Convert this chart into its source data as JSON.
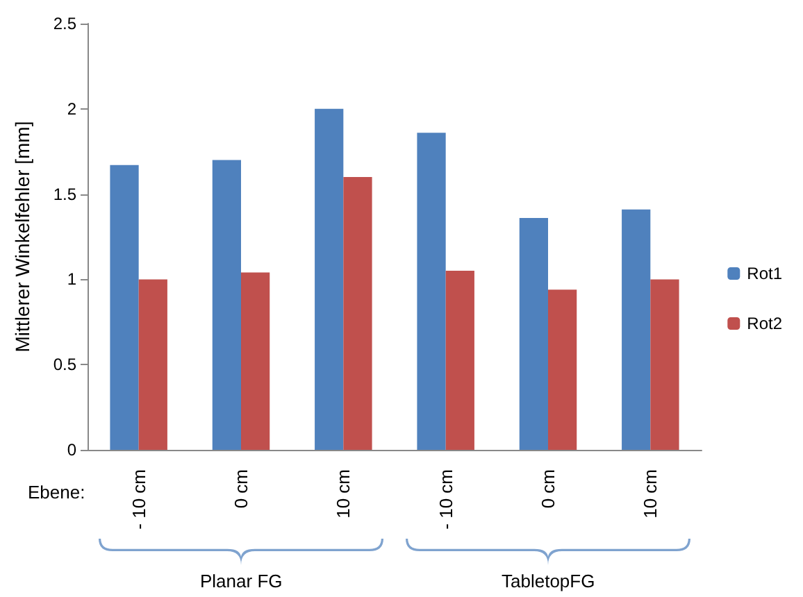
{
  "chart_data": {
    "type": "bar",
    "ylabel": "Mittlerer Winkelfehler [mm]",
    "categories": [
      "- 10 cm",
      "0 cm",
      "10 cm",
      "- 10 cm",
      "0 cm",
      "10 cm"
    ],
    "series": [
      {
        "name": "Rot1",
        "color": "#4f81bd",
        "values": [
          1.67,
          1.7,
          2.0,
          1.86,
          1.36,
          1.41
        ]
      },
      {
        "name": "Rot2",
        "color": "#c0504d",
        "values": [
          1.0,
          1.04,
          1.6,
          1.05,
          0.94,
          1.0
        ]
      }
    ],
    "ylim": [
      0,
      2.5
    ],
    "yticks": [
      0,
      0.5,
      1,
      1.5,
      2,
      2.5
    ],
    "grid": false,
    "legend": "right",
    "annotations": [
      "Ebene:",
      "Planar FG",
      "TabletopFG"
    ]
  }
}
